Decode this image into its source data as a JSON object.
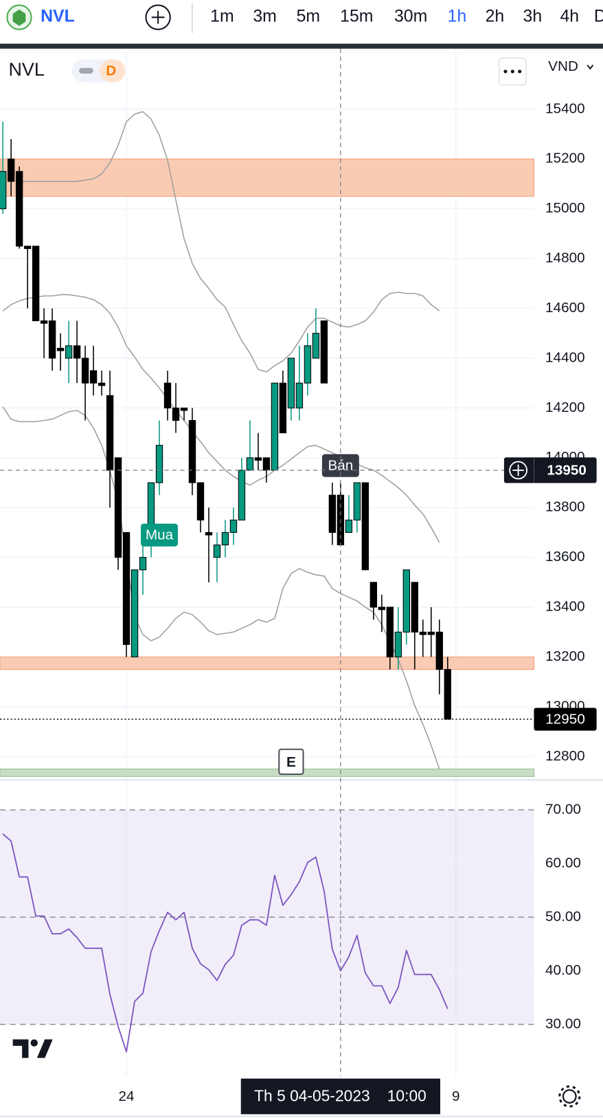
{
  "toolbar": {
    "symbol": "NVL",
    "timeframes": [
      "1m",
      "3m",
      "5m",
      "15m",
      "30m",
      "1h",
      "2h",
      "3h",
      "4h",
      "D"
    ],
    "active": "1h"
  },
  "legend": {
    "symbol": "NVL",
    "badge": "D",
    "currency": "VND"
  },
  "chart_data": [
    {
      "type": "candlestick",
      "categories": [
        null,
        null,
        null,
        null,
        null,
        null,
        null,
        null,
        null,
        null,
        null,
        null,
        null,
        null,
        null,
        "24",
        null,
        null,
        null,
        null,
        null,
        null,
        null,
        null,
        null,
        null,
        null,
        null,
        null,
        null,
        null,
        null,
        null,
        null,
        null,
        null,
        null,
        null,
        null,
        null,
        null,
        null,
        null,
        null,
        null,
        null,
        null,
        null,
        null,
        null,
        null,
        null,
        null,
        null,
        null,
        "9"
      ],
      "open": [
        15000,
        15200,
        15150,
        14850,
        14850,
        14550,
        14550,
        14440,
        14400,
        14450,
        14400,
        14350,
        14300,
        14250,
        14000,
        13700,
        13200,
        13550,
        13700,
        13900,
        14300,
        14200,
        14200,
        14150,
        13900,
        13700,
        13600,
        13650,
        13700,
        13750,
        13950,
        14000,
        14000,
        13950,
        14300,
        14200,
        14200,
        14300,
        14400,
        14550,
        13850,
        13850,
        13700,
        13750,
        13900,
        13500,
        13400,
        13400,
        13200,
        13300,
        13500,
        13300,
        13300,
        13300,
        13150,
        null
      ],
      "high": [
        15350,
        15280,
        15170,
        14850,
        14850,
        14600,
        14600,
        14500,
        14550,
        14550,
        14450,
        14450,
        14350,
        14350,
        14000,
        13700,
        13550,
        13650,
        13900,
        14150,
        14350,
        14300,
        14200,
        14200,
        13900,
        13800,
        13700,
        13750,
        13800,
        14000,
        14150,
        14100,
        14000,
        14300,
        14350,
        14400,
        14450,
        14500,
        14600,
        14550,
        13900,
        13900,
        13850,
        13900,
        13900,
        13500,
        13450,
        13400,
        13400,
        13550,
        13500,
        13350,
        13400,
        13350,
        13200,
        null
      ],
      "low": [
        14980,
        15050,
        14840,
        14600,
        14550,
        14400,
        14350,
        14350,
        14300,
        14300,
        14150,
        14250,
        14250,
        13800,
        13550,
        13200,
        13200,
        13450,
        13600,
        13850,
        14150,
        14100,
        14150,
        13850,
        13700,
        13500,
        13500,
        13600,
        13650,
        13750,
        13950,
        13950,
        13900,
        13950,
        14100,
        14150,
        14150,
        14250,
        14400,
        14300,
        13650,
        13650,
        13700,
        13700,
        13550,
        13350,
        13300,
        13150,
        13150,
        13250,
        13150,
        13200,
        13200,
        13050,
        12950,
        null
      ],
      "close": [
        15150,
        15110,
        14850,
        14840,
        14550,
        14540,
        14400,
        14430,
        14450,
        14400,
        14300,
        14300,
        14290,
        13950,
        13600,
        13250,
        13550,
        13600,
        13900,
        14050,
        14200,
        14150,
        14190,
        13900,
        13750,
        13690,
        13650,
        13700,
        13750,
        13950,
        14000,
        13990,
        13950,
        14300,
        14100,
        14400,
        14300,
        14450,
        14500,
        14300,
        13700,
        13650,
        13750,
        13900,
        13550,
        13400,
        13390,
        13200,
        13300,
        13550,
        13300,
        13290,
        13290,
        13150,
        12950,
        null
      ],
      "up_color": "#089981",
      "down_color": "#000000",
      "series": [
        {
          "color": "#9e9e9e",
          "values": [
            null,
            null,
            15110,
            15110,
            15110,
            15110,
            15110,
            15110,
            15110,
            15110,
            15115,
            15120,
            15140,
            15185,
            15255,
            15350,
            15380,
            15390,
            15360,
            15295,
            15195,
            15035,
            14880,
            14780,
            14720,
            14680,
            14635,
            14605,
            14535,
            14470,
            14420,
            14355,
            14345,
            14370,
            14390,
            14420,
            14470,
            14525,
            14560,
            14560,
            14545,
            14530,
            14525,
            14535,
            14550,
            14585,
            14635,
            14660,
            14665,
            14660,
            14660,
            14650,
            14615,
            14590,
            null,
            null
          ]
        },
        {
          "color": "#9e9e9e",
          "values": [
            14590,
            14615,
            14630,
            14640,
            14645,
            14650,
            14650,
            14655,
            14655,
            14650,
            14645,
            14635,
            14615,
            14580,
            14525,
            14450,
            14405,
            14355,
            14320,
            14280,
            14235,
            14190,
            14150,
            14105,
            14065,
            14020,
            13985,
            13950,
            13925,
            13905,
            13890,
            13910,
            13925,
            13950,
            13970,
            13995,
            14020,
            14045,
            14050,
            14035,
            14020,
            14005,
            13990,
            13975,
            13960,
            13950,
            13930,
            13905,
            13880,
            13850,
            13810,
            13775,
            13720,
            13660,
            null,
            null
          ]
        },
        {
          "color": "#9e9e9e",
          "values": [
            14205,
            14155,
            14145,
            14145,
            14145,
            14150,
            14155,
            14170,
            14185,
            14190,
            14170,
            14120,
            14050,
            13950,
            13820,
            13605,
            13360,
            13290,
            13265,
            13280,
            13315,
            13355,
            13380,
            13370,
            13340,
            13305,
            13290,
            13295,
            13300,
            13315,
            13330,
            13350,
            13340,
            13355,
            13475,
            13535,
            13555,
            13540,
            13530,
            13525,
            13475,
            13455,
            13440,
            13425,
            13400,
            13380,
            13330,
            13260,
            13190,
            13105,
            13005,
            12930,
            12845,
            12750,
            null,
            null
          ]
        }
      ],
      "zones": [
        {
          "from": 15050,
          "to": 15200,
          "color": "#f9cbb3",
          "border": "#f4a582"
        },
        {
          "from": 13150,
          "to": 13200,
          "color": "#f9cbb3",
          "border": "#f4a582"
        },
        {
          "from": 12720,
          "to": 12750,
          "color": "#c8ddc4",
          "border": "#9fc49a"
        }
      ],
      "markers": [
        {
          "label": "Mua",
          "at": 19,
          "side": "buy",
          "color": "#089981"
        },
        {
          "label": "Bán",
          "at": 41,
          "side": "sell",
          "color": "#363a45"
        }
      ],
      "events": [
        {
          "label": "E",
          "at": 35
        }
      ],
      "last_price": 12950,
      "crosshair": {
        "at": 41,
        "price": 13950,
        "date": "Th 5 04-05-2023",
        "time": "10:00"
      },
      "ylim": [
        12709,
        15643
      ],
      "yticks": [
        12800,
        13000,
        13200,
        13400,
        13600,
        13800,
        14000,
        14200,
        14400,
        14600,
        14800,
        15000,
        15200,
        15400
      ],
      "grid": true
    },
    {
      "type": "line",
      "categories": [
        null,
        null,
        null,
        null,
        null,
        null,
        null,
        null,
        null,
        null,
        null,
        null,
        null,
        null,
        null,
        "24",
        null,
        null,
        null,
        null,
        null,
        null,
        null,
        null,
        null,
        null,
        null,
        null,
        null,
        null,
        null,
        null,
        null,
        null,
        null,
        null,
        null,
        null,
        null,
        null,
        null,
        null,
        null,
        null,
        null,
        null,
        null,
        null,
        null,
        null,
        null,
        null,
        null,
        null,
        null,
        "9"
      ],
      "values": [
        65.5,
        64.2,
        57.5,
        57.5,
        50.2,
        50.2,
        46.9,
        46.9,
        47.8,
        46.2,
        44.2,
        44.2,
        44.2,
        35.6,
        29.6,
        24.9,
        34.3,
        35.8,
        43.6,
        47.5,
        50.9,
        49.5,
        50.9,
        44.2,
        41.3,
        40.2,
        38.2,
        41.2,
        42.9,
        48.5,
        49.5,
        49.5,
        48.5,
        57.8,
        52.2,
        54.2,
        56.6,
        60.2,
        61.2,
        54.9,
        44.0,
        40.0,
        42.6,
        46.6,
        39.6,
        37.2,
        37.2,
        33.9,
        36.9,
        43.8,
        39.3,
        39.3,
        39.3,
        36.5,
        32.9,
        null
      ],
      "color": "#7e57c2",
      "band": [
        30,
        70
      ],
      "band_color": "rgba(126,87,194,0.1)",
      "dashed": [
        30,
        50,
        70
      ],
      "ylim": [
        20.3,
        75.45
      ],
      "yticks": [
        {
          "value": 30,
          "label": "30.00"
        },
        {
          "value": 40,
          "label": "40.00"
        },
        {
          "value": 50,
          "label": "50.00"
        },
        {
          "value": 60,
          "label": "60.00"
        },
        {
          "value": 70,
          "label": "70.00"
        }
      ],
      "grid": true
    }
  ]
}
